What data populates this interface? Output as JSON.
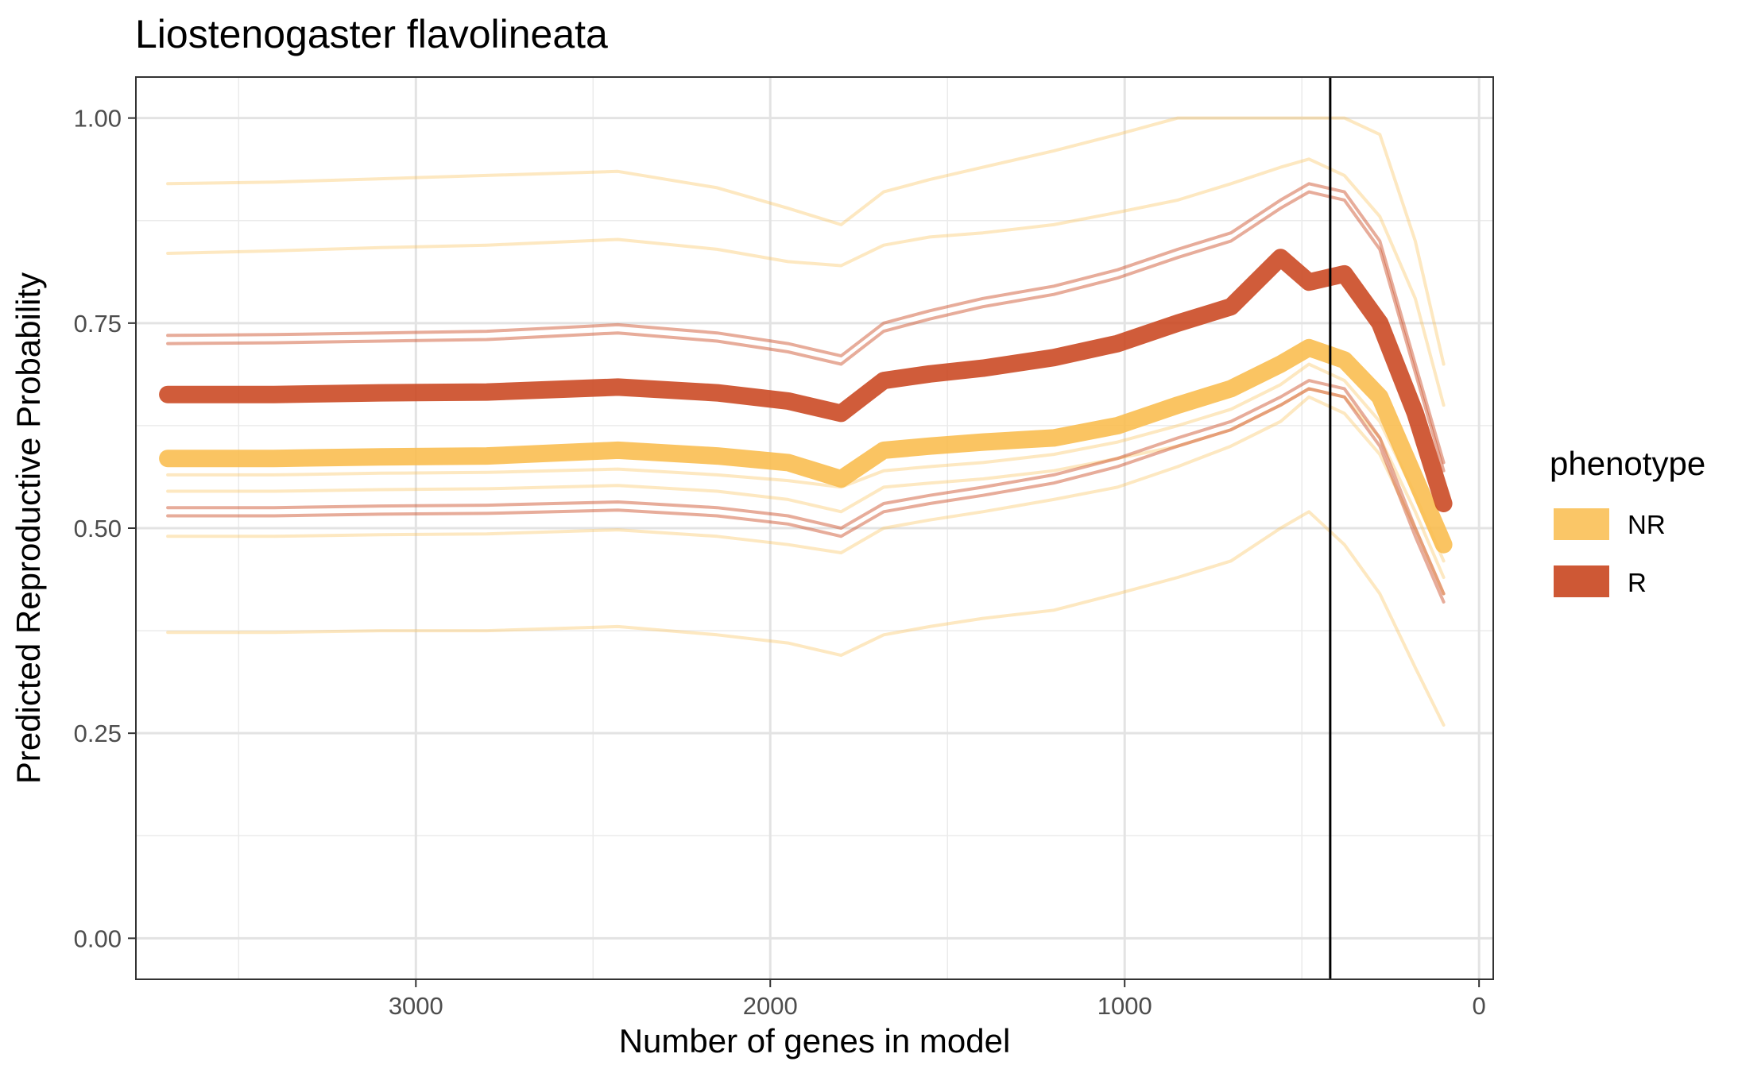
{
  "chart_data": {
    "type": "line",
    "title": "Liostenogaster flavolineata",
    "xlabel": "Number of genes in model",
    "ylabel": "Predicted Reproductive Probability",
    "xlim": [
      3790,
      -40
    ],
    "ylim": [
      -0.05,
      1.05
    ],
    "x_ticks": [
      3000,
      2000,
      1000,
      0
    ],
    "x_tick_labels": [
      "3000",
      "2000",
      "1000",
      "0"
    ],
    "x_minor": [
      3500,
      2500,
      1500,
      500
    ],
    "y_ticks": [
      0,
      0.25,
      0.5,
      0.75,
      1
    ],
    "y_tick_labels": [
      "0.00",
      "0.25",
      "0.50",
      "0.75",
      "1.00"
    ],
    "y_minor": [
      0.125,
      0.375,
      0.625,
      0.875
    ],
    "grid": true,
    "vline_x": 420,
    "x": [
      3700,
      3400,
      3100,
      2800,
      2430,
      2150,
      1950,
      1800,
      1680,
      1550,
      1400,
      1200,
      1020,
      850,
      700,
      560,
      480,
      380,
      280,
      180,
      100
    ],
    "legend": {
      "title": "phenotype",
      "position": "right",
      "entries": [
        {
          "label": "NR",
          "color": "#F9BC4C"
        },
        {
          "label": "R",
          "color": "#C9461F"
        }
      ]
    },
    "series": [
      {
        "name": "NR",
        "role": "mean",
        "values": [
          0.585,
          0.585,
          0.587,
          0.588,
          0.595,
          0.588,
          0.58,
          0.56,
          0.595,
          0.6,
          0.605,
          0.61,
          0.625,
          0.65,
          0.67,
          0.7,
          0.72,
          0.705,
          0.66,
          0.56,
          0.48
        ]
      },
      {
        "name": "R",
        "role": "mean",
        "values": [
          0.663,
          0.663,
          0.665,
          0.666,
          0.672,
          0.665,
          0.655,
          0.64,
          0.68,
          0.688,
          0.695,
          0.708,
          0.725,
          0.75,
          0.77,
          0.83,
          0.8,
          0.81,
          0.75,
          0.64,
          0.53
        ]
      },
      {
        "name": "NR",
        "role": "replicate",
        "values": [
          0.92,
          0.922,
          0.926,
          0.93,
          0.935,
          0.915,
          0.89,
          0.87,
          0.91,
          0.925,
          0.94,
          0.96,
          0.98,
          1.0,
          1.0,
          1.0,
          1.0,
          1.0,
          0.98,
          0.85,
          0.7
        ]
      },
      {
        "name": "NR",
        "role": "replicate",
        "values": [
          0.835,
          0.838,
          0.842,
          0.845,
          0.852,
          0.84,
          0.825,
          0.82,
          0.845,
          0.855,
          0.86,
          0.87,
          0.885,
          0.9,
          0.92,
          0.94,
          0.95,
          0.93,
          0.88,
          0.78,
          0.65
        ]
      },
      {
        "name": "NR",
        "role": "replicate",
        "values": [
          0.565,
          0.565,
          0.567,
          0.568,
          0.572,
          0.565,
          0.558,
          0.55,
          0.57,
          0.575,
          0.58,
          0.59,
          0.605,
          0.625,
          0.645,
          0.675,
          0.7,
          0.68,
          0.63,
          0.54,
          0.46
        ]
      },
      {
        "name": "NR",
        "role": "replicate",
        "values": [
          0.545,
          0.545,
          0.547,
          0.548,
          0.552,
          0.545,
          0.535,
          0.52,
          0.55,
          0.555,
          0.56,
          0.57,
          0.585,
          0.6,
          0.62,
          0.65,
          0.67,
          0.66,
          0.61,
          0.52,
          0.44
        ]
      },
      {
        "name": "NR",
        "role": "replicate",
        "values": [
          0.49,
          0.49,
          0.492,
          0.493,
          0.498,
          0.49,
          0.48,
          0.47,
          0.5,
          0.51,
          0.52,
          0.535,
          0.55,
          0.575,
          0.6,
          0.63,
          0.66,
          0.64,
          0.59,
          0.5,
          0.42
        ]
      },
      {
        "name": "NR",
        "role": "replicate",
        "values": [
          0.373,
          0.373,
          0.375,
          0.375,
          0.38,
          0.37,
          0.36,
          0.345,
          0.37,
          0.38,
          0.39,
          0.4,
          0.42,
          0.44,
          0.46,
          0.5,
          0.52,
          0.48,
          0.42,
          0.33,
          0.26
        ]
      },
      {
        "name": "R",
        "role": "replicate",
        "values": [
          0.735,
          0.736,
          0.738,
          0.74,
          0.748,
          0.738,
          0.725,
          0.71,
          0.75,
          0.765,
          0.78,
          0.795,
          0.815,
          0.84,
          0.86,
          0.9,
          0.92,
          0.91,
          0.85,
          0.7,
          0.58
        ]
      },
      {
        "name": "R",
        "role": "replicate",
        "values": [
          0.725,
          0.726,
          0.728,
          0.73,
          0.738,
          0.728,
          0.715,
          0.7,
          0.74,
          0.755,
          0.77,
          0.785,
          0.805,
          0.83,
          0.85,
          0.89,
          0.91,
          0.9,
          0.84,
          0.69,
          0.57
        ]
      },
      {
        "name": "R",
        "role": "replicate",
        "values": [
          0.525,
          0.525,
          0.527,
          0.528,
          0.532,
          0.525,
          0.515,
          0.5,
          0.53,
          0.54,
          0.55,
          0.565,
          0.585,
          0.61,
          0.63,
          0.66,
          0.68,
          0.67,
          0.61,
          0.5,
          0.42
        ]
      },
      {
        "name": "R",
        "role": "replicate",
        "values": [
          0.515,
          0.515,
          0.517,
          0.518,
          0.522,
          0.515,
          0.505,
          0.49,
          0.52,
          0.53,
          0.54,
          0.555,
          0.575,
          0.6,
          0.62,
          0.65,
          0.67,
          0.66,
          0.6,
          0.49,
          0.41
        ]
      }
    ]
  }
}
